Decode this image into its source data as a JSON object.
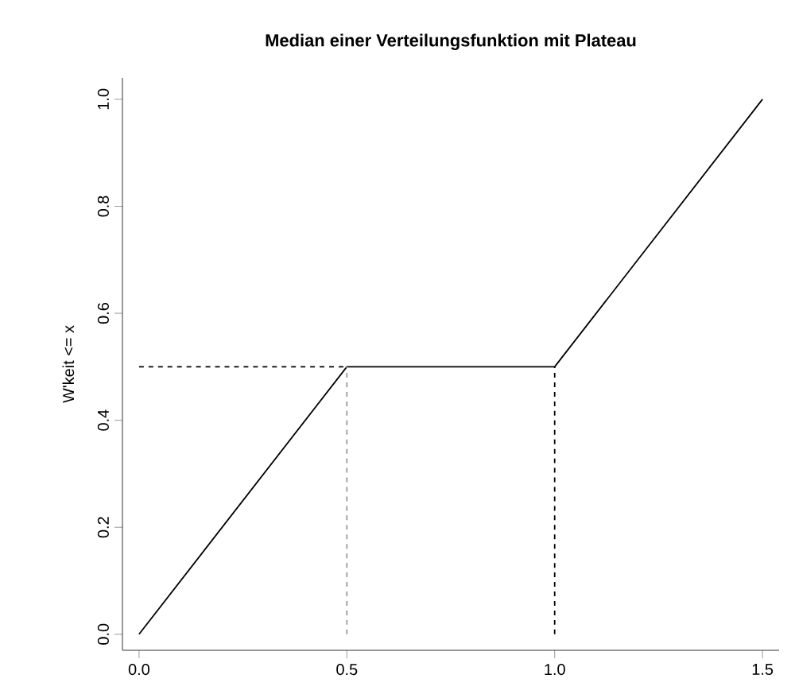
{
  "chart_data": {
    "type": "line",
    "title": "Median einer Verteilungsfunktion mit Plateau",
    "ylabel": "W'keit <= x",
    "xlim": [
      -0.04,
      1.54
    ],
    "ylim": [
      -0.03,
      1.04
    ],
    "xticks": [
      {
        "value": 0,
        "label": "0.0"
      },
      0.5,
      {
        "value": 1,
        "label": "1.0"
      },
      1.5
    ],
    "yticks": [
      {
        "value": 0,
        "label": "0.0"
      },
      0.2,
      0.4,
      0.6,
      0.8,
      {
        "value": 1,
        "label": "1.0"
      }
    ],
    "marker": "none",
    "series": [
      {
        "color": "#000000",
        "line_style": "solid",
        "x": [
          0,
          0.5,
          1.0,
          1.5
        ],
        "values": [
          0,
          0.5,
          0.5,
          1.0
        ]
      },
      {
        "color": "#000000",
        "line_style": "dashed",
        "x": [
          0,
          0.5
        ],
        "values": [
          0.5,
          0.5
        ]
      },
      {
        "color": "#999999",
        "line_style": "dashed",
        "x": [
          0.5,
          0.5
        ],
        "values": [
          0,
          0.5
        ]
      },
      {
        "color": "#000000",
        "line_style": "dashed",
        "x": [
          1.0,
          1.0
        ],
        "values": [
          0,
          0.5
        ]
      }
    ]
  }
}
